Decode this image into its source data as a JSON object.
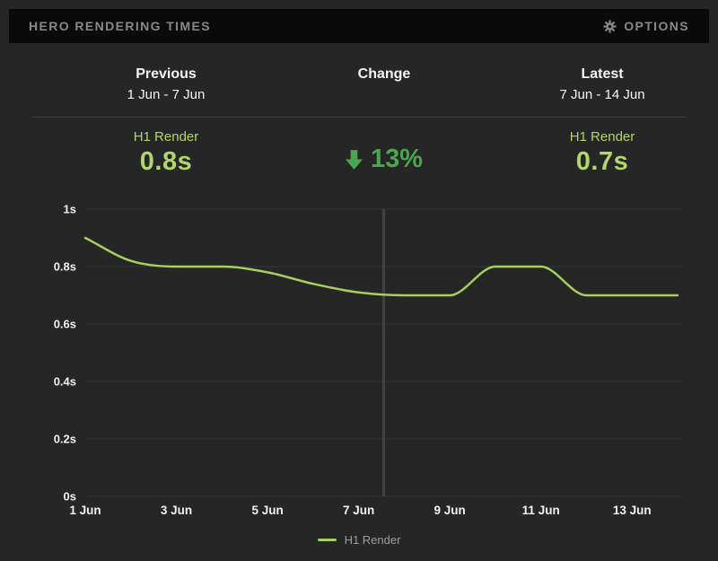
{
  "header": {
    "title": "HERO RENDERING TIMES",
    "options_label": "OPTIONS"
  },
  "comparison": {
    "columns": [
      {
        "label": "Previous",
        "range": "1 Jun - 7 Jun"
      },
      {
        "label": "Change",
        "range": ""
      },
      {
        "label": "Latest",
        "range": "7 Jun - 14 Jun"
      }
    ]
  },
  "stats": {
    "previous": {
      "metric": "H1 Render",
      "value": "0.8s"
    },
    "change": {
      "direction": "down",
      "value": "13%"
    },
    "latest": {
      "metric": "H1 Render",
      "value": "0.7s"
    }
  },
  "colors": {
    "bg": "#262626",
    "titlebar_bg": "#0a0a0a",
    "muted_text": "#85888c",
    "white_text": "#f4f4f4",
    "accent_lime": "#b2d66b",
    "accent_green": "#4ba551",
    "line_color": "#a5cf5f",
    "grid": "#343537",
    "period_divider": "#404141"
  },
  "chart_data": {
    "type": "line",
    "title": "HERO RENDERING TIMES",
    "x": [
      1,
      2,
      3,
      4,
      5,
      6,
      7,
      8,
      9,
      10,
      11,
      12,
      13,
      14
    ],
    "x_unit": "Jun",
    "series": [
      {
        "name": "H1 Render",
        "color": "#a5cf5f",
        "values": [
          0.9,
          0.82,
          0.8,
          0.8,
          0.78,
          0.74,
          0.71,
          0.7,
          0.7,
          0.8,
          0.8,
          0.7,
          0.7,
          0.7
        ]
      }
    ],
    "ylim": [
      0,
      1
    ],
    "xlim": [
      1,
      14
    ],
    "yticks": [
      {
        "value": 1,
        "label": "1s"
      },
      {
        "value": 0.8,
        "label": "0.8s"
      },
      {
        "value": 0.6,
        "label": "0.6s"
      },
      {
        "value": 0.4,
        "label": "0.4s"
      },
      {
        "value": 0.2,
        "label": "0.2s"
      },
      {
        "value": 0,
        "label": "0s"
      }
    ],
    "xticks": [
      {
        "day": 1,
        "label": "1 Jun"
      },
      {
        "day": 3,
        "label": "3 Jun"
      },
      {
        "day": 5,
        "label": "5 Jun"
      },
      {
        "day": 7,
        "label": "7 Jun"
      },
      {
        "day": 9,
        "label": "9 Jun"
      },
      {
        "day": 11,
        "label": "11 Jun"
      },
      {
        "day": 13,
        "label": "13 Jun"
      }
    ],
    "period_divider_day": 7.55,
    "grid": "horizontal",
    "legend_position": "bottom"
  }
}
